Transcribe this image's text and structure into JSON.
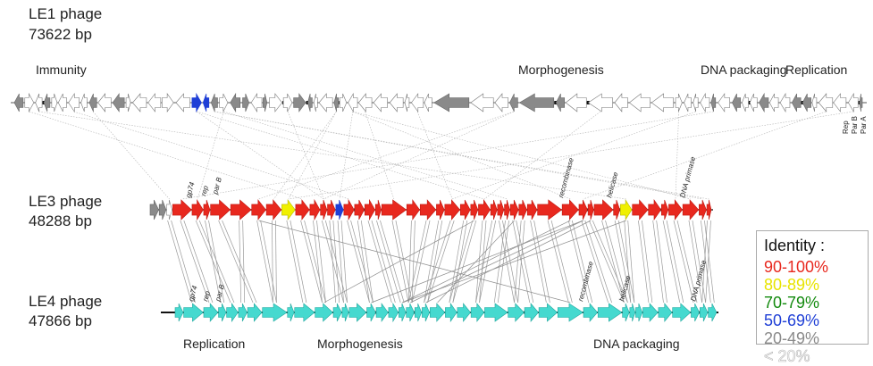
{
  "genomes": [
    {
      "name": "LE1 phage",
      "length": "73622 bp"
    },
    {
      "name": "LE3 phage",
      "length": "48288 bp"
    },
    {
      "name": "LE4 phage",
      "length": "47866 bp"
    }
  ],
  "le1_modules": [
    "Immunity",
    "Morphogenesis",
    "DNA packaging",
    "Replication"
  ],
  "le1_gene_labels": [
    "Rep",
    "Par B",
    "Par A"
  ],
  "le3_gene_labels": [
    "gp74",
    "rep",
    "par B",
    "recombinase",
    "helicase",
    "DNA primase"
  ],
  "le4_gene_labels": [
    "gp74",
    "rep",
    "par B",
    "recombinase",
    "helicase",
    "DNA primase"
  ],
  "bottom_modules": [
    "Replication",
    "Morphogenesis",
    "DNA packaging"
  ],
  "legend": {
    "title": "Identity :",
    "items": [
      {
        "label": "90-100%",
        "color": "#e8281e"
      },
      {
        "label": "80-89%",
        "color": "#f0f000"
      },
      {
        "label": "70-79%",
        "color": "#138a0e"
      },
      {
        "label": "50-69%",
        "color": "#1f3fd6"
      },
      {
        "label": "20-49%",
        "color": "#8a8a8a"
      },
      {
        "label": "< 20%",
        "color": "#ffffff"
      }
    ]
  },
  "colors": {
    "le3_gene": "#e8281e",
    "le4_gene": "#45d9cf",
    "le1_gene": "#ffffff",
    "gene_outline": "#777777",
    "link_line": "#9a9a9a"
  }
}
